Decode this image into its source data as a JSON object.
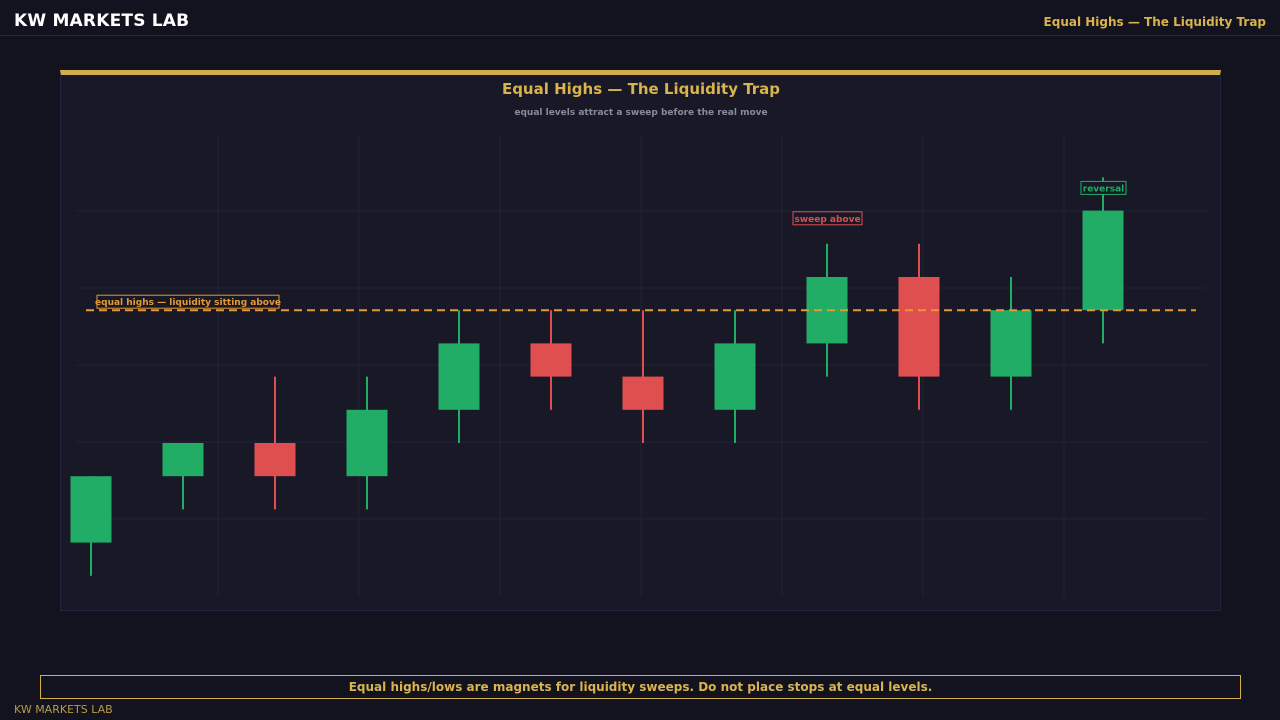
{
  "header": {
    "brand": "KW MARKETS LAB",
    "page_title": "Equal Highs — The Liquidity Trap"
  },
  "footer": {
    "note": "Equal highs/lows are magnets for liquidity sweeps. Do not place stops at equal levels.",
    "brand": "KW MARKETS LAB"
  },
  "colors": {
    "accent": "#d2ae4c",
    "bullish": "#21ad66",
    "bearish": "#df4f4f",
    "level_line": "#e39a35"
  },
  "chart_data": {
    "type": "candlestick",
    "title": "Equal Highs — The Liquidity Trap",
    "subtitle": "equal levels attract a sweep before the real move",
    "xlabel": "",
    "ylabel": "",
    "grid": true,
    "ylim": [
      0,
      13
    ],
    "candles": [
      {
        "open": 2.0,
        "high": 4.0,
        "low": 1.0,
        "close": 4.0
      },
      {
        "open": 4.0,
        "high": 5.0,
        "low": 3.0,
        "close": 5.0
      },
      {
        "open": 5.0,
        "high": 7.0,
        "low": 3.0,
        "close": 4.0
      },
      {
        "open": 4.0,
        "high": 7.0,
        "low": 3.0,
        "close": 6.0
      },
      {
        "open": 6.0,
        "high": 9.0,
        "low": 5.0,
        "close": 8.0
      },
      {
        "open": 8.0,
        "high": 9.0,
        "low": 6.0,
        "close": 7.0
      },
      {
        "open": 7.0,
        "high": 9.0,
        "low": 5.0,
        "close": 6.0
      },
      {
        "open": 6.0,
        "high": 9.0,
        "low": 5.0,
        "close": 8.0
      },
      {
        "open": 8.0,
        "high": 11.0,
        "low": 7.0,
        "close": 10.0
      },
      {
        "open": 10.0,
        "high": 11.0,
        "low": 6.0,
        "close": 7.0
      },
      {
        "open": 7.0,
        "high": 10.0,
        "low": 6.0,
        "close": 9.0
      },
      {
        "open": 9.0,
        "high": 13.0,
        "low": 8.0,
        "close": 12.0
      }
    ],
    "reference_line": {
      "value": 9.0,
      "style": "dashed"
    },
    "annotations": [
      {
        "text": "equal highs — liquidity sitting above",
        "anchor": "reference_line",
        "color": "#e39a35"
      },
      {
        "text": "sweep above",
        "candle_index": 8,
        "color": "#df4f4f"
      },
      {
        "text": "reversal",
        "candle_index": 11,
        "color": "#21ad66"
      }
    ]
  }
}
